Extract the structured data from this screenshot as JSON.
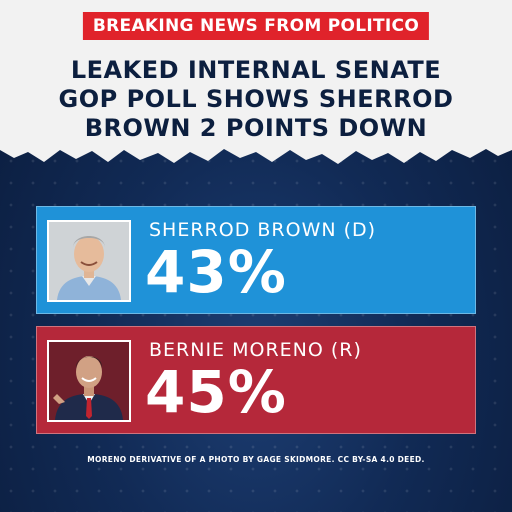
{
  "banner": {
    "text": "BREAKING NEWS FROM POLITICO"
  },
  "headline": {
    "lines": [
      "LEAKED INTERNAL SENATE",
      "GOP POLL SHOWS SHERROD",
      "BROWN 2 POINTS DOWN"
    ]
  },
  "candidates": [
    {
      "name": "SHERROD BROWN (D)",
      "percent": "43%",
      "party_color": "#1f92d8",
      "photo_icon": "sherrod-brown-photo"
    },
    {
      "name": "BERNIE MORENO (R)",
      "percent": "45%",
      "party_color": "#b5283a",
      "photo_icon": "bernie-moreno-photo"
    }
  ],
  "credit": {
    "text": "MORENO DERIVATIVE OF A PHOTO BY GAGE SKIDMORE. CC BY-SA 4.0 DEED."
  },
  "colors": {
    "banner_red": "#e0232b",
    "headline_navy": "#0c1f3f",
    "background_navy": "#112a55"
  }
}
